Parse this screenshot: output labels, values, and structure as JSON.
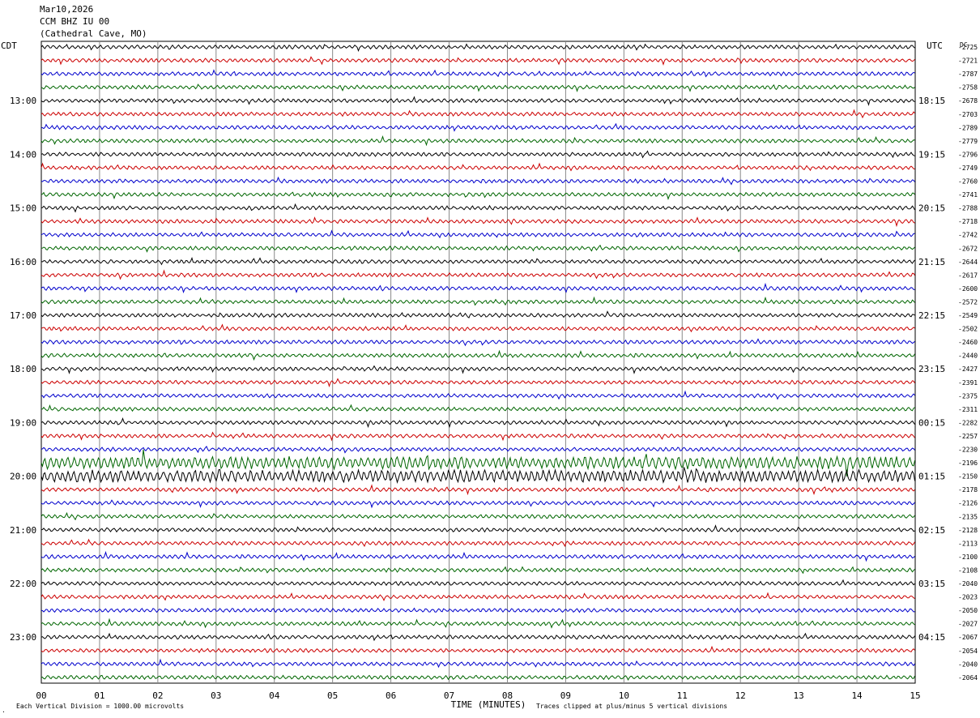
{
  "header": {
    "date": "Mar10,2026",
    "station": "CCM BHZ IU 00",
    "location": "(Cathedral Cave, MO)"
  },
  "labels": {
    "left_tz": "CDT",
    "right_tz": "UTC",
    "dc": "DC",
    "xlabel": "TIME (MINUTES)",
    "scale_note": "Each Vertical Division = 1000.00 microvolts",
    "clip_note": "Traces clipped at plus/minus 5 vertical divisions",
    "corner_mark": "."
  },
  "colors": {
    "cycle": [
      "#000000",
      "#cc0000",
      "#0000cc",
      "#006600"
    ],
    "grid": "#888888"
  },
  "chart_data": {
    "type": "line",
    "xlabel": "TIME (MINUTES)",
    "xlim": [
      0,
      15
    ],
    "x_ticks": [
      "00",
      "01",
      "02",
      "03",
      "04",
      "05",
      "06",
      "07",
      "08",
      "09",
      "10",
      "11",
      "12",
      "13",
      "14",
      "15"
    ],
    "left_ticks": [
      "13:00",
      "14:00",
      "15:00",
      "16:00",
      "17:00",
      "18:00",
      "19:00",
      "20:00",
      "21:00",
      "22:00",
      "23:00"
    ],
    "right_ticks": [
      "18:15",
      "19:15",
      "20:15",
      "21:15",
      "22:15",
      "23:15",
      "00:15",
      "01:15",
      "02:15",
      "03:15",
      "04:15"
    ],
    "dc_offsets": [
      "-2725",
      "-2721",
      "-2787",
      "-2758",
      "-2678",
      "-2703",
      "-2789",
      "-2779",
      "-2796",
      "-2749",
      "-2760",
      "-2741",
      "-2788",
      "-2718",
      "-2742",
      "-2672",
      "-2644",
      "-2617",
      "-2600",
      "-2572",
      "-2549",
      "-2502",
      "-2460",
      "-2440",
      "-2427",
      "-2391",
      "-2375",
      "-2311",
      "-2282",
      "-2257",
      "-2230",
      "-2196",
      "-2150",
      "-2178",
      "-2126",
      "-2135",
      "-2128",
      "-2113",
      "-2100",
      "-2108",
      "-2040",
      "-2023",
      "-2050",
      "-2027",
      "-2067",
      "-2054",
      "-2040",
      "-2064"
    ],
    "trace_count": 48
  }
}
